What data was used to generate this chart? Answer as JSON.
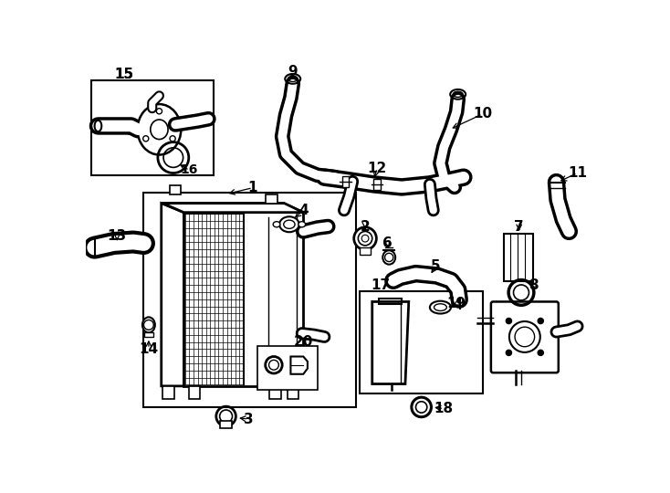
{
  "bg_color": "#ffffff",
  "line_color": "#000000",
  "fig_width": 7.34,
  "fig_height": 5.4,
  "dpi": 100,
  "label_fontsize": 10,
  "small_fontsize": 8
}
